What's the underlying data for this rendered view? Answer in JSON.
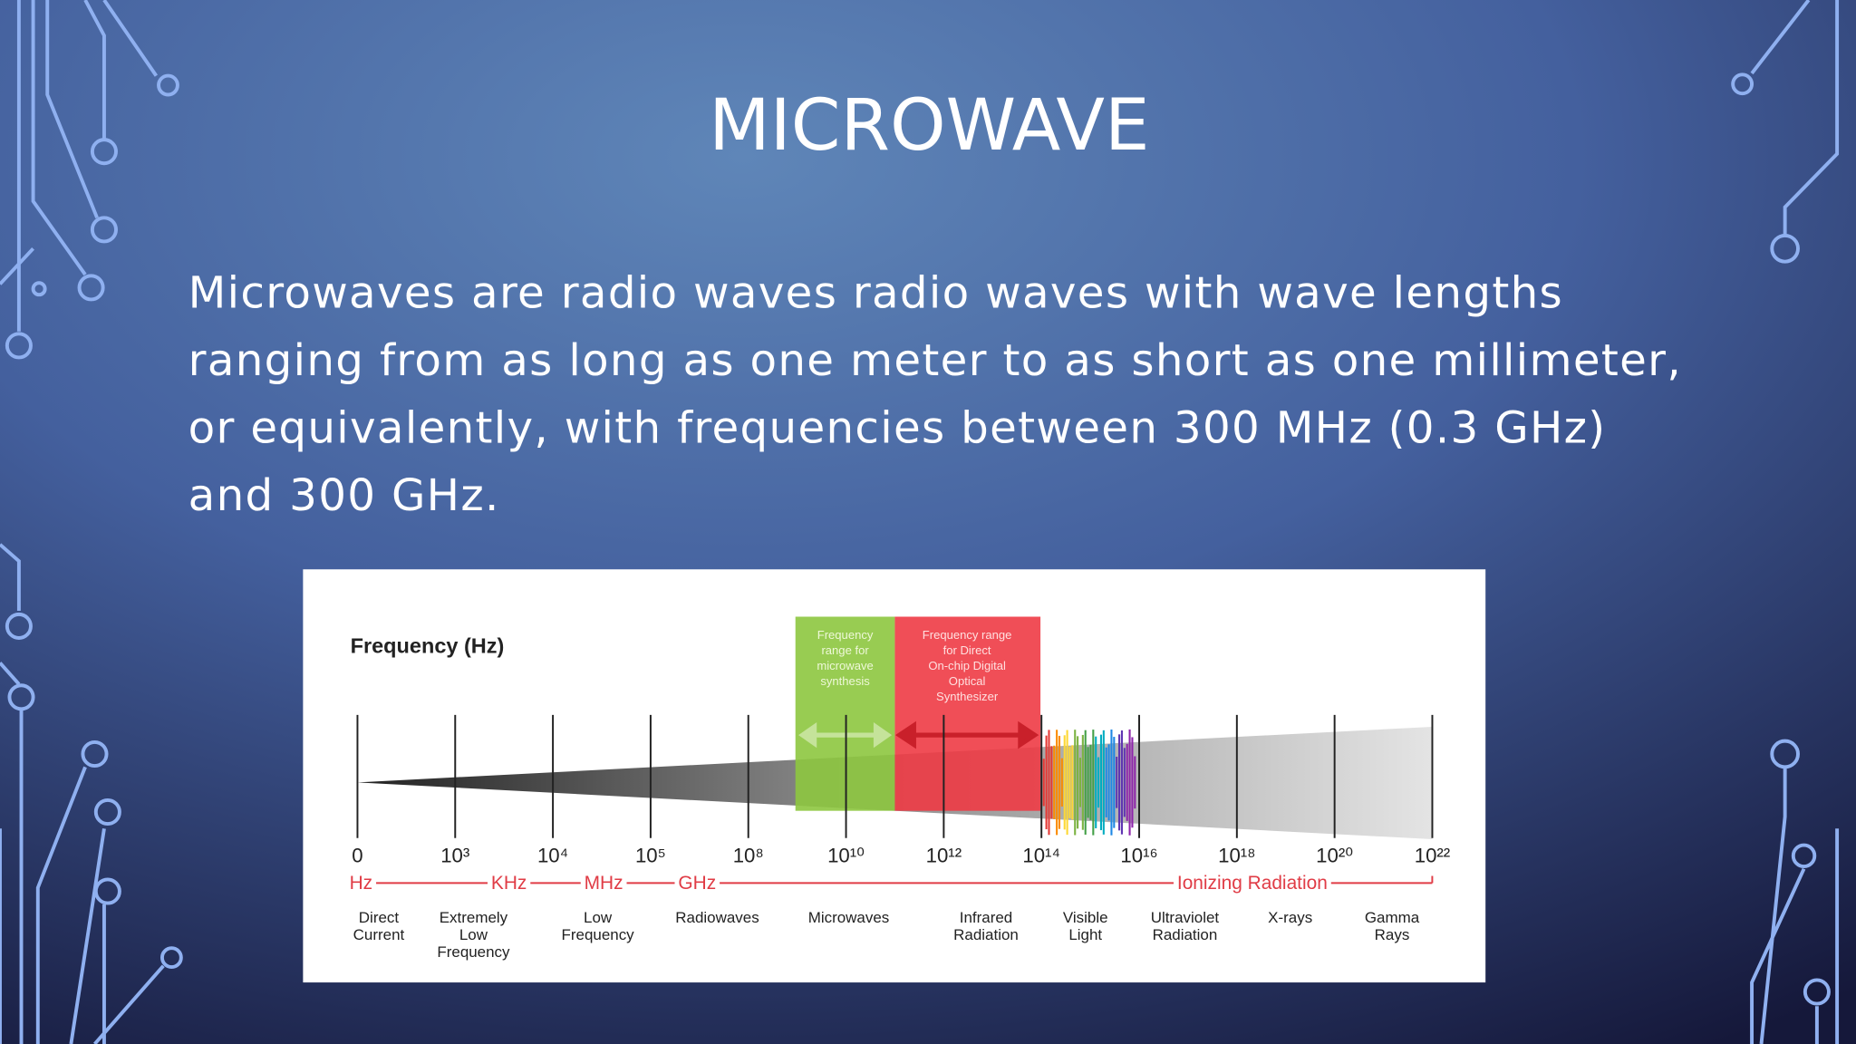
{
  "slide": {
    "title": "MICROWAVE",
    "body": [
      "Microwaves are radio waves radio waves with wave lengths",
      "ranging from as long as one meter to as short as one millimeter,",
      "or equivalently, with frequencies between 300 MHz (0.3 GHz)",
      "and 300 GHz."
    ]
  },
  "figure": {
    "axis_title": "Frequency (Hz)",
    "boxes": [
      [
        "Frequency",
        "range for",
        "microwave",
        "synthesis"
      ],
      [
        "Frequency range",
        "for Direct",
        "On-chip Digital",
        "Optical",
        "Synthesizer"
      ]
    ],
    "ticks": [
      "0",
      "10³",
      "10⁴",
      "10⁵",
      "10⁸",
      "10¹⁰",
      "10¹²",
      "10¹⁴",
      "10¹⁶",
      "10¹⁸",
      "10²⁰",
      "10²²"
    ],
    "bands": [
      "Hz",
      "KHz",
      "MHz",
      "GHz",
      "Ionizing Radiation"
    ],
    "categories": [
      [
        "Direct",
        "Current"
      ],
      [
        "Extremely",
        "Low",
        "Frequency"
      ],
      [
        "Low",
        "Frequency"
      ],
      [
        "Radiowaves"
      ],
      [
        "Microwaves"
      ],
      [
        "Infrared",
        "Radiation"
      ],
      [
        "Visible",
        "Light"
      ],
      [
        "Ultraviolet",
        "Radiation"
      ],
      [
        "X-rays"
      ],
      [
        "Gamma",
        "Rays"
      ]
    ]
  }
}
